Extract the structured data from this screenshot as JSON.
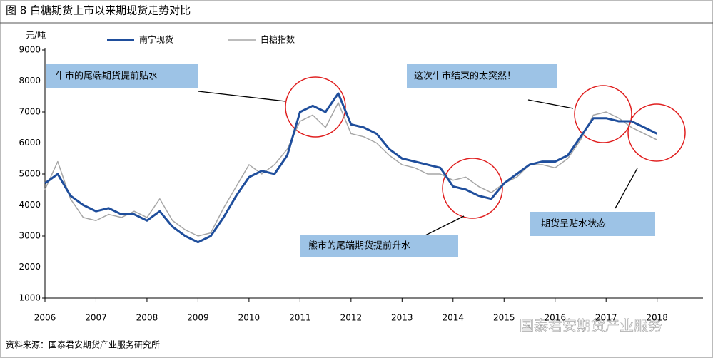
{
  "chart_data": {
    "type": "line",
    "title": "图 8 白糖期货上市以来期现货走势对比",
    "y_label": "元/吨",
    "source": "资料来源：国泰君安期货产业服务研究所",
    "watermark": "国泰君安期货产业服务",
    "annotations": [
      "牛市的尾端期货提前贴水",
      "这次牛市结束的太突然！",
      "熊市的尾端期货提前升水",
      "期货呈贴水状态"
    ],
    "x": [
      2006,
      2006.25,
      2006.5,
      2006.75,
      2007,
      2007.25,
      2007.5,
      2007.75,
      2008,
      2008.25,
      2008.5,
      2008.75,
      2009,
      2009.25,
      2009.5,
      2009.75,
      2010,
      2010.25,
      2010.5,
      2010.75,
      2011,
      2011.25,
      2011.5,
      2011.75,
      2012,
      2012.25,
      2012.5,
      2012.75,
      2013,
      2013.25,
      2013.5,
      2013.75,
      2014,
      2014.25,
      2014.5,
      2014.75,
      2015,
      2015.25,
      2015.5,
      2015.75,
      2016,
      2016.25,
      2016.5,
      2016.75,
      2017,
      2017.25,
      2017.5,
      2017.75,
      2018
    ],
    "series": [
      {
        "name": "南宁现货",
        "color": "#1f4e9c",
        "width": 3,
        "values": [
          4700,
          5000,
          4300,
          4000,
          3800,
          3900,
          3700,
          3700,
          3500,
          3800,
          3300,
          3000,
          2800,
          3000,
          3600,
          4300,
          4900,
          5100,
          5000,
          5600,
          7000,
          7200,
          7000,
          7600,
          6600,
          6500,
          6300,
          5800,
          5500,
          5400,
          5300,
          5200,
          4600,
          4500,
          4300,
          4200,
          4700,
          5000,
          5300,
          5400,
          5400,
          5600,
          6200,
          6800,
          6800,
          6700,
          6700,
          6500,
          6300
        ]
      },
      {
        "name": "白糖指数",
        "color": "#a6a6a6",
        "width": 1.5,
        "values": [
          4500,
          5400,
          4200,
          3600,
          3500,
          3700,
          3600,
          3800,
          3600,
          4200,
          3500,
          3200,
          3000,
          3100,
          3900,
          4600,
          5300,
          5000,
          5300,
          5800,
          6700,
          6900,
          6500,
          7300,
          6300,
          6200,
          6000,
          5600,
          5300,
          5200,
          5000,
          5000,
          4800,
          4900,
          4600,
          4400,
          4700,
          4900,
          5300,
          5300,
          5200,
          5500,
          6100,
          6900,
          7000,
          6800,
          6500,
          6300,
          6100
        ]
      }
    ],
    "xlim": [
      2006,
      2018.9
    ],
    "xticks": [
      2006,
      2007,
      2008,
      2009,
      2010,
      2011,
      2012,
      2013,
      2014,
      2015,
      2016,
      2017,
      2018
    ],
    "ylim": [
      1000,
      9000
    ],
    "yticks": [
      1000,
      2000,
      3000,
      4000,
      5000,
      6000,
      7000,
      8000,
      9000
    ]
  }
}
